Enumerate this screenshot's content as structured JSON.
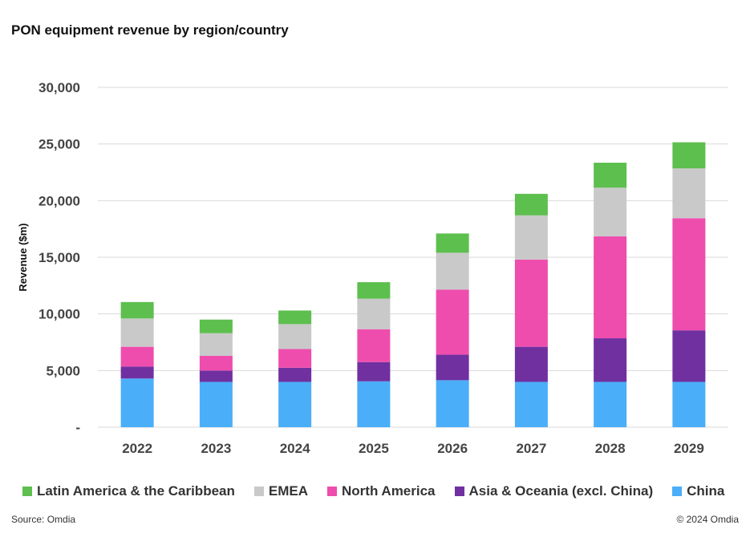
{
  "title": "PON equipment revenue by region/country",
  "source": "Source: Omdia",
  "copyright": "© 2024 Omdia",
  "chart_data": {
    "type": "bar",
    "stacked": true,
    "title": "PON equipment revenue by region/country",
    "xlabel": "",
    "ylabel": "Revenue ($m)",
    "ylim": [
      0,
      30000
    ],
    "yticks": [
      0,
      5000,
      10000,
      15000,
      20000,
      25000,
      30000
    ],
    "ytick_labels": [
      "-",
      "5,000",
      "10,000",
      "15,000",
      "20,000",
      "25,000",
      "30,000"
    ],
    "grid": true,
    "legend_position": "bottom",
    "categories": [
      "2022",
      "2023",
      "2024",
      "2025",
      "2026",
      "2027",
      "2028",
      "2029"
    ],
    "series": [
      {
        "name": "China",
        "color": "#4BAEF8",
        "values": [
          4300,
          4000,
          4000,
          4050,
          4150,
          4000,
          4000,
          4000
        ]
      },
      {
        "name": "Asia & Oceania (excl. China)",
        "color": "#7030A0",
        "values": [
          1050,
          1000,
          1250,
          1700,
          2250,
          3100,
          3850,
          4550
        ]
      },
      {
        "name": "North America",
        "color": "#EE4DAD",
        "values": [
          1750,
          1300,
          1650,
          2900,
          5750,
          7700,
          9000,
          9900
        ]
      },
      {
        "name": "EMEA",
        "color": "#C9C9C9",
        "values": [
          2500,
          2000,
          2200,
          2700,
          3250,
          3900,
          4300,
          4400
        ]
      },
      {
        "name": "Latin America & the Caribbean",
        "color": "#5DBF4E",
        "values": [
          1450,
          1200,
          1200,
          1450,
          1700,
          1900,
          2200,
          2300
        ]
      }
    ],
    "legend_order": [
      "Latin America & the Caribbean",
      "EMEA",
      "North America",
      "Asia & Oceania (excl. China)",
      "China"
    ]
  }
}
